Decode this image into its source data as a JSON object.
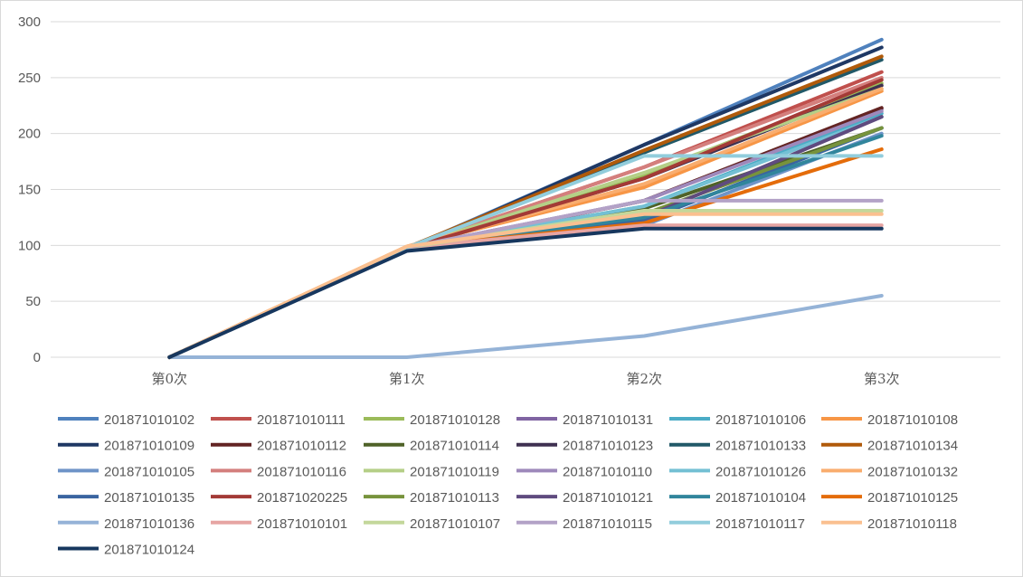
{
  "chart_data": {
    "type": "line",
    "categories": [
      "第0次",
      "第1次",
      "第2次",
      "第3次"
    ],
    "ylim": [
      0,
      300
    ],
    "yticks": [
      0,
      50,
      100,
      150,
      200,
      250,
      300
    ],
    "grid": true,
    "legend_position": "bottom",
    "series": [
      {
        "name": "201871010102",
        "color": "#4f81bd",
        "values": [
          0,
          97,
          190,
          284
        ]
      },
      {
        "name": "201871010111",
        "color": "#c0504d",
        "values": [
          0,
          98,
          170,
          255
        ]
      },
      {
        "name": "201871010128",
        "color": "#9bbb59",
        "values": [
          0,
          98,
          163,
          245
        ]
      },
      {
        "name": "201871010131",
        "color": "#8064a2",
        "values": [
          0,
          98,
          140,
          222
        ]
      },
      {
        "name": "201871010106",
        "color": "#4bacc6",
        "values": [
          0,
          98,
          135,
          218
        ]
      },
      {
        "name": "201871010108",
        "color": "#f79646",
        "values": [
          0,
          99,
          152,
          238
        ]
      },
      {
        "name": "201871010109",
        "color": "#1f3864",
        "values": [
          0,
          96,
          190,
          277
        ]
      },
      {
        "name": "201871010112",
        "color": "#632423",
        "values": [
          0,
          97,
          140,
          223
        ]
      },
      {
        "name": "201871010114",
        "color": "#4f6228",
        "values": [
          0,
          97,
          133,
          205
        ]
      },
      {
        "name": "201871010123",
        "color": "#3f3151",
        "values": [
          0,
          97,
          160,
          243
        ]
      },
      {
        "name": "201871010133",
        "color": "#215968",
        "values": [
          0,
          98,
          183,
          266
        ]
      },
      {
        "name": "201871010134",
        "color": "#b05a0a",
        "values": [
          0,
          98,
          185,
          269
        ]
      },
      {
        "name": "201871010105",
        "color": "#6f94c8",
        "values": [
          0,
          97,
          118,
          200
        ]
      },
      {
        "name": "201871010116",
        "color": "#d47f7d",
        "values": [
          0,
          98,
          170,
          250
        ]
      },
      {
        "name": "201871010119",
        "color": "#b5cf87",
        "values": [
          0,
          98,
          165,
          240
        ]
      },
      {
        "name": "201871010110",
        "color": "#9e89bb",
        "values": [
          0,
          98,
          140,
          220
        ]
      },
      {
        "name": "201871010126",
        "color": "#74c0d4",
        "values": [
          0,
          98,
          135,
          215
        ]
      },
      {
        "name": "201871010132",
        "color": "#f9ad6f",
        "values": [
          0,
          99,
          155,
          240
        ]
      },
      {
        "name": "201871010135",
        "color": "#3a64a0",
        "values": [
          0,
          97,
          122,
          205
        ]
      },
      {
        "name": "201871020225",
        "color": "#a33a36",
        "values": [
          0,
          97,
          160,
          248
        ]
      },
      {
        "name": "201871010113",
        "color": "#77933c",
        "values": [
          0,
          97,
          128,
          205
        ]
      },
      {
        "name": "201871010121",
        "color": "#5f4b7f",
        "values": [
          0,
          97,
          125,
          215
        ]
      },
      {
        "name": "201871010104",
        "color": "#31859c",
        "values": [
          0,
          97,
          125,
          198
        ]
      },
      {
        "name": "201871010125",
        "color": "#e46c0a",
        "values": [
          0,
          98,
          120,
          186
        ]
      },
      {
        "name": "201871010136",
        "color": "#95b3d7",
        "values": [
          0,
          0,
          19,
          55
        ]
      },
      {
        "name": "201871010101",
        "color": "#e6a5a3",
        "values": [
          0,
          98,
          118,
          118
        ]
      },
      {
        "name": "201871010107",
        "color": "#c4d79b",
        "values": [
          0,
          98,
          131,
          131
        ]
      },
      {
        "name": "201871010115",
        "color": "#b3a2c7",
        "values": [
          0,
          98,
          140,
          140
        ]
      },
      {
        "name": "201871010117",
        "color": "#92cddc",
        "values": [
          0,
          98,
          180,
          180
        ]
      },
      {
        "name": "201871010118",
        "color": "#fac090",
        "values": [
          0,
          99,
          128,
          128
        ]
      },
      {
        "name": "201871010124",
        "color": "#17375e",
        "values": [
          0,
          95,
          115,
          115
        ]
      }
    ]
  }
}
